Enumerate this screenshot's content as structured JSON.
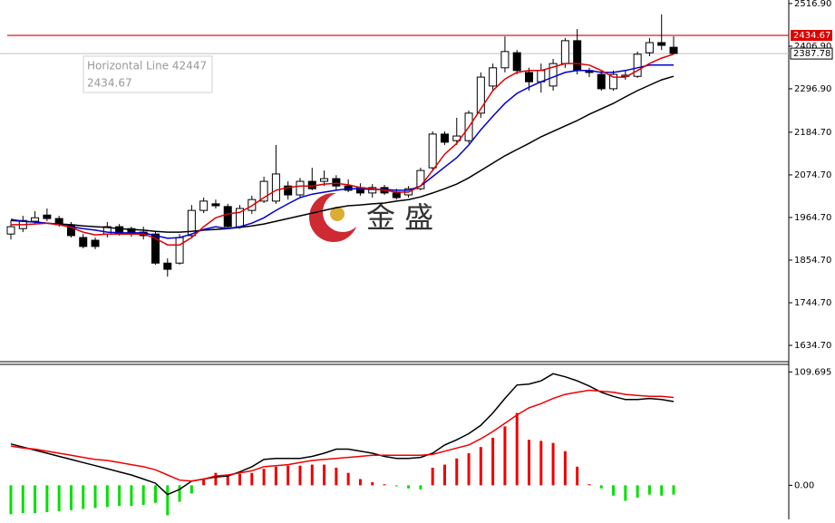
{
  "chart_data": [
    {
      "type": "candlestick",
      "open": [
        1922,
        1936,
        1955,
        1971,
        1962,
        1946,
        1913,
        1906,
        1922,
        1941,
        1936,
        1927,
        1922,
        1847,
        1847,
        1918,
        1983,
        2000,
        1993,
        1941,
        1983,
        2007,
        2007,
        2046,
        2023,
        2058,
        2058,
        2065,
        2046,
        2042,
        2028,
        2042,
        2028,
        2023,
        2039,
        2093,
        2180,
        2163,
        2163,
        2234,
        2304,
        2351,
        2390,
        2339,
        2315,
        2304,
        2362,
        2421,
        2344,
        2334,
        2297,
        2329,
        2329,
        2390,
        2416,
        2404
      ],
      "high": [
        1957,
        1969,
        1981,
        1988,
        1969,
        1953,
        1922,
        1913,
        1953,
        1948,
        1941,
        1941,
        1929,
        1859,
        1922,
        1997,
        2016,
        2011,
        2000,
        1997,
        2021,
        2070,
        2152,
        2058,
        2067,
        2093,
        2086,
        2074,
        2063,
        2053,
        2051,
        2049,
        2039,
        2046,
        2093,
        2187,
        2187,
        2222,
        2241,
        2339,
        2362,
        2432,
        2397,
        2351,
        2362,
        2374,
        2428,
        2451,
        2351,
        2344,
        2344,
        2344,
        2393,
        2428,
        2489,
        2432
      ],
      "low": [
        1908,
        1927,
        1948,
        1955,
        1941,
        1913,
        1885,
        1883,
        1913,
        1918,
        1915,
        1908,
        1843,
        1812,
        1843,
        1913,
        1976,
        1988,
        1936,
        1936,
        1974,
        2002,
        2000,
        2011,
        2016,
        2035,
        2046,
        2035,
        2030,
        2021,
        2016,
        2023,
        2011,
        2016,
        2035,
        2086,
        2152,
        2152,
        2156,
        2222,
        2292,
        2339,
        2334,
        2292,
        2287,
        2292,
        2351,
        2334,
        2327,
        2292,
        2292,
        2320,
        2325,
        2381,
        2397,
        2386
      ],
      "close": [
        1941,
        1957,
        1964,
        1962,
        1946,
        1918,
        1890,
        1890,
        1941,
        1922,
        1922,
        1918,
        1847,
        1831,
        1913,
        1983,
        2007,
        1995,
        1941,
        1988,
        2011,
        2058,
        2077,
        2023,
        2058,
        2039,
        2065,
        2046,
        2035,
        2028,
        2042,
        2028,
        2016,
        2039,
        2086,
        2180,
        2159,
        2175,
        2234,
        2327,
        2351,
        2393,
        2344,
        2315,
        2344,
        2362,
        2421,
        2344,
        2339,
        2297,
        2334,
        2332,
        2386,
        2416,
        2409,
        2388
      ],
      "up_color": "#ffffff",
      "down_color": "#000000",
      "series": [
        {
          "color": "#000000",
          "values": [
            1957,
            1955,
            1953,
            1950,
            1948,
            1946,
            1943,
            1941,
            1939,
            1936,
            1934,
            1932,
            1929,
            1927,
            1927,
            1929,
            1932,
            1934,
            1936,
            1939,
            1943,
            1948,
            1955,
            1962,
            1969,
            1976,
            1983,
            1990,
            1995,
            1997,
            2000,
            2002,
            2007,
            2011,
            2018,
            2028,
            2039,
            2051,
            2067,
            2086,
            2105,
            2124,
            2140,
            2156,
            2173,
            2187,
            2201,
            2215,
            2231,
            2245,
            2259,
            2276,
            2292,
            2306,
            2320,
            2329
          ]
        },
        {
          "color": "#0000cc",
          "values": [
            1960,
            1955,
            1953,
            1950,
            1946,
            1941,
            1936,
            1932,
            1927,
            1925,
            1925,
            1925,
            1918,
            1911,
            1913,
            1922,
            1934,
            1941,
            1936,
            1941,
            1950,
            1964,
            1983,
            2000,
            2016,
            2025,
            2030,
            2035,
            2039,
            2039,
            2037,
            2037,
            2035,
            2035,
            2046,
            2070,
            2095,
            2119,
            2152,
            2191,
            2226,
            2259,
            2285,
            2301,
            2315,
            2327,
            2339,
            2344,
            2344,
            2339,
            2339,
            2344,
            2351,
            2358,
            2358,
            2358
          ]
        },
        {
          "color": "#dd0000",
          "values": [
            1946,
            1946,
            1948,
            1950,
            1946,
            1939,
            1927,
            1920,
            1922,
            1922,
            1922,
            1922,
            1911,
            1894,
            1894,
            1913,
            1941,
            1964,
            1974,
            1978,
            1995,
            2016,
            2035,
            2042,
            2046,
            2046,
            2051,
            2053,
            2049,
            2042,
            2039,
            2035,
            2030,
            2030,
            2046,
            2086,
            2128,
            2156,
            2198,
            2245,
            2292,
            2322,
            2339,
            2344,
            2344,
            2353,
            2362,
            2362,
            2358,
            2344,
            2327,
            2327,
            2344,
            2362,
            2376,
            2386
          ]
        }
      ],
      "hline": {
        "name": "Horizontal Line 42447",
        "value": 2434.67,
        "color": "#dd0000"
      },
      "current_price": 2387.78,
      "ylim": [
        1595,
        2526
      ],
      "yticks": [
        {
          "value": 2516.9,
          "label": "2516.90"
        },
        {
          "value": 2406.9,
          "label": "2406.90"
        },
        {
          "value": 2296.9,
          "label": "2296.90"
        },
        {
          "value": 2184.7,
          "label": "2184.70"
        },
        {
          "value": 2074.7,
          "label": "2074.70"
        },
        {
          "value": 1964.7,
          "label": "1964.70"
        },
        {
          "value": 1854.7,
          "label": "1854.70"
        },
        {
          "value": 1744.7,
          "label": "1744.70"
        },
        {
          "value": 1634.7,
          "label": "1634.70"
        }
      ],
      "watermark": "金 盛"
    },
    {
      "type": "macd",
      "histogram": [
        -28,
        -27,
        -27,
        -26,
        -25,
        -24,
        -23,
        -22,
        -21,
        -20,
        -20,
        -19,
        -17,
        -29,
        -16,
        -8,
        6,
        12,
        10,
        11,
        12,
        16,
        18,
        19,
        19,
        20,
        20,
        17,
        12,
        6,
        3,
        1,
        -1,
        -3,
        -4,
        17,
        20,
        26,
        31,
        37,
        46,
        57,
        70,
        44,
        43,
        41,
        33,
        18,
        1,
        -3,
        -10,
        -15,
        -12,
        -9,
        -10,
        -9
      ],
      "positive_color": "#ee0000",
      "negative_color": "#00e000",
      "series": [
        {
          "color": "#000000",
          "values": [
            40,
            37,
            34,
            31,
            28,
            25,
            22,
            19,
            16,
            13,
            10,
            6,
            2,
            -9,
            -4,
            4,
            6,
            8,
            9,
            13,
            18,
            25,
            26,
            26,
            26,
            28,
            31,
            35,
            35,
            33,
            31,
            28,
            26,
            26,
            27,
            31,
            39,
            44,
            50,
            58,
            70,
            84,
            97,
            98,
            101,
            108,
            105,
            101,
            96,
            90,
            86,
            83,
            83,
            84,
            83,
            81
          ]
        },
        {
          "color": "#ee0000",
          "values": [
            38,
            36,
            35,
            33,
            31,
            29,
            27,
            25,
            24,
            22,
            20,
            18,
            15,
            10,
            5,
            4,
            6,
            9,
            10,
            12,
            14,
            18,
            19,
            20,
            22,
            24,
            25,
            26,
            27,
            28,
            29,
            29,
            29,
            29,
            29,
            30,
            33,
            36,
            39,
            45,
            52,
            60,
            68,
            75,
            79,
            84,
            88,
            90,
            92,
            91,
            90,
            88,
            87,
            86,
            86,
            85
          ]
        }
      ],
      "ylim": [
        -33,
        117
      ],
      "yticks": [
        109.695,
        {
          "value": 0,
          "label": "0.00"
        }
      ]
    }
  ]
}
